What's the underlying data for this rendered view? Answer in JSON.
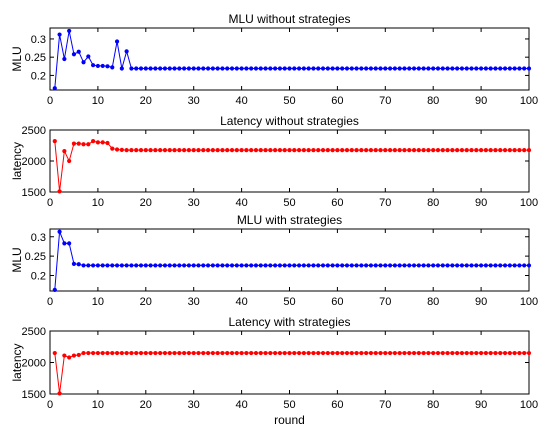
{
  "chart_data": [
    {
      "type": "line",
      "title": "MLU without strategies",
      "xlabel": "",
      "ylabel": "MLU",
      "xlim": [
        0,
        100
      ],
      "ylim": [
        0.16,
        0.33
      ],
      "xticks": [
        0,
        10,
        20,
        30,
        40,
        50,
        60,
        70,
        80,
        90,
        100
      ],
      "yticks": [
        0.2,
        0.25,
        0.3
      ],
      "grid": false,
      "color": "#0000ff",
      "series": [
        {
          "x_start": 1,
          "values": [
            0.165,
            0.312,
            0.245,
            0.322,
            0.258,
            0.265,
            0.236,
            0.252,
            0.228,
            0.226,
            0.226,
            0.225,
            0.222,
            0.293,
            0.219,
            0.266,
            0.219,
            0.219,
            0.219,
            0.219,
            0.219,
            0.219,
            0.219,
            0.219,
            0.219,
            0.219,
            0.219,
            0.219,
            0.219,
            0.219,
            0.219,
            0.219,
            0.219,
            0.219,
            0.219,
            0.219,
            0.219,
            0.219,
            0.219,
            0.219,
            0.219,
            0.219,
            0.219,
            0.219,
            0.219,
            0.219,
            0.219,
            0.219,
            0.219,
            0.219,
            0.219,
            0.219,
            0.219,
            0.219,
            0.219,
            0.219,
            0.219,
            0.219,
            0.219,
            0.219,
            0.219,
            0.219,
            0.219,
            0.219,
            0.219,
            0.219,
            0.219,
            0.219,
            0.219,
            0.219,
            0.219,
            0.219,
            0.219,
            0.219,
            0.219,
            0.219,
            0.219,
            0.219,
            0.219,
            0.219,
            0.219,
            0.219,
            0.219,
            0.219,
            0.219,
            0.219,
            0.219,
            0.219,
            0.219,
            0.219,
            0.219,
            0.219,
            0.219,
            0.219,
            0.219,
            0.219,
            0.219,
            0.219,
            0.219,
            0.219
          ]
        }
      ]
    },
    {
      "type": "line",
      "title": "Latency without strategies",
      "xlabel": "",
      "ylabel": "latency",
      "xlim": [
        0,
        100
      ],
      "ylim": [
        1500,
        2500
      ],
      "xticks": [
        0,
        10,
        20,
        30,
        40,
        50,
        60,
        70,
        80,
        90,
        100
      ],
      "yticks": [
        1500,
        2000,
        2500
      ],
      "grid": false,
      "color": "#ff0000",
      "series": [
        {
          "x_start": 1,
          "values": [
            2320,
            1510,
            2160,
            2000,
            2280,
            2280,
            2270,
            2270,
            2320,
            2300,
            2300,
            2290,
            2200,
            2185,
            2180,
            2175,
            2175,
            2175,
            2175,
            2175,
            2175,
            2175,
            2175,
            2175,
            2175,
            2175,
            2175,
            2175,
            2175,
            2175,
            2175,
            2175,
            2175,
            2175,
            2175,
            2175,
            2175,
            2175,
            2175,
            2175,
            2175,
            2175,
            2175,
            2175,
            2175,
            2175,
            2175,
            2175,
            2175,
            2175,
            2175,
            2175,
            2175,
            2175,
            2175,
            2175,
            2175,
            2175,
            2175,
            2175,
            2175,
            2175,
            2175,
            2175,
            2175,
            2175,
            2175,
            2175,
            2175,
            2175,
            2175,
            2175,
            2175,
            2175,
            2175,
            2175,
            2175,
            2175,
            2175,
            2175,
            2175,
            2175,
            2175,
            2175,
            2175,
            2175,
            2175,
            2175,
            2175,
            2175,
            2175,
            2175,
            2175,
            2175,
            2175,
            2175,
            2175,
            2175,
            2175,
            2175
          ]
        }
      ]
    },
    {
      "type": "line",
      "title": "MLU with strategies",
      "xlabel": "",
      "ylabel": "MLU",
      "xlim": [
        0,
        100
      ],
      "ylim": [
        0.16,
        0.32
      ],
      "xticks": [
        0,
        10,
        20,
        30,
        40,
        50,
        60,
        70,
        80,
        90,
        100
      ],
      "yticks": [
        0.2,
        0.25,
        0.3
      ],
      "grid": false,
      "color": "#0000ff",
      "series": [
        {
          "x_start": 1,
          "values": [
            0.163,
            0.313,
            0.283,
            0.283,
            0.23,
            0.229,
            0.226,
            0.226,
            0.226,
            0.226,
            0.226,
            0.226,
            0.226,
            0.226,
            0.226,
            0.226,
            0.226,
            0.226,
            0.226,
            0.226,
            0.226,
            0.226,
            0.226,
            0.226,
            0.226,
            0.226,
            0.226,
            0.226,
            0.226,
            0.226,
            0.226,
            0.226,
            0.226,
            0.226,
            0.226,
            0.226,
            0.226,
            0.226,
            0.226,
            0.226,
            0.226,
            0.226,
            0.226,
            0.226,
            0.226,
            0.226,
            0.226,
            0.226,
            0.226,
            0.226,
            0.226,
            0.226,
            0.226,
            0.226,
            0.226,
            0.226,
            0.226,
            0.226,
            0.226,
            0.226,
            0.226,
            0.226,
            0.226,
            0.226,
            0.226,
            0.226,
            0.226,
            0.226,
            0.226,
            0.226,
            0.226,
            0.226,
            0.226,
            0.226,
            0.226,
            0.226,
            0.226,
            0.226,
            0.226,
            0.226,
            0.226,
            0.226,
            0.226,
            0.226,
            0.226,
            0.226,
            0.226,
            0.226,
            0.226,
            0.226,
            0.226,
            0.226,
            0.226,
            0.226,
            0.226,
            0.226,
            0.226,
            0.226,
            0.226,
            0.226
          ]
        }
      ]
    },
    {
      "type": "line",
      "title": "Latency with strategies",
      "xlabel": "round",
      "ylabel": "latency",
      "xlim": [
        0,
        100
      ],
      "ylim": [
        1500,
        2500
      ],
      "xticks": [
        0,
        10,
        20,
        30,
        40,
        50,
        60,
        70,
        80,
        90,
        100
      ],
      "yticks": [
        1500,
        2000,
        2500
      ],
      "grid": false,
      "color": "#ff0000",
      "series": [
        {
          "x_start": 1,
          "values": [
            2150,
            1510,
            2110,
            2080,
            2110,
            2120,
            2150,
            2150,
            2150,
            2150,
            2150,
            2150,
            2150,
            2150,
            2150,
            2150,
            2150,
            2150,
            2150,
            2150,
            2150,
            2150,
            2150,
            2150,
            2150,
            2150,
            2150,
            2150,
            2150,
            2150,
            2150,
            2150,
            2150,
            2150,
            2150,
            2150,
            2150,
            2150,
            2150,
            2150,
            2150,
            2150,
            2150,
            2150,
            2150,
            2150,
            2150,
            2150,
            2150,
            2150,
            2150,
            2150,
            2150,
            2150,
            2150,
            2150,
            2150,
            2150,
            2150,
            2150,
            2150,
            2150,
            2150,
            2150,
            2150,
            2150,
            2150,
            2150,
            2150,
            2150,
            2150,
            2150,
            2150,
            2150,
            2150,
            2150,
            2150,
            2150,
            2150,
            2150,
            2150,
            2150,
            2150,
            2150,
            2150,
            2150,
            2150,
            2150,
            2150,
            2150,
            2150,
            2150,
            2150,
            2150,
            2150,
            2150,
            2150,
            2150,
            2150,
            2150
          ]
        }
      ]
    }
  ]
}
